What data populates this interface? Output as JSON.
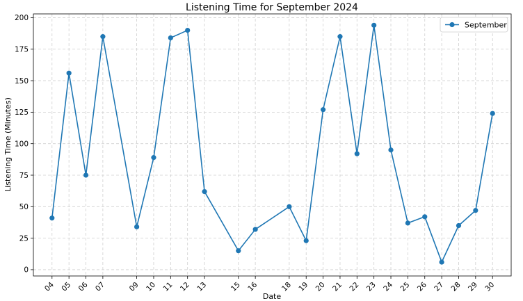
{
  "chart_data": {
    "type": "line",
    "title": "Listening Time for September 2024",
    "xlabel": "Date",
    "ylabel": "Listening Time (Minutes)",
    "x_tick_labels": [
      "04",
      "05",
      "06",
      "07",
      "09",
      "10",
      "11",
      "12",
      "13",
      "15",
      "16",
      "18",
      "19",
      "20",
      "21",
      "22",
      "23",
      "24",
      "25",
      "26",
      "27",
      "28",
      "29",
      "30"
    ],
    "x": [
      "2024-09-04",
      "2024-09-05",
      "2024-09-06",
      "2024-09-07",
      "2024-09-09",
      "2024-09-10",
      "2024-09-11",
      "2024-09-12",
      "2024-09-13",
      "2024-09-15",
      "2024-09-16",
      "2024-09-18",
      "2024-09-19",
      "2024-09-20",
      "2024-09-21",
      "2024-09-22",
      "2024-09-23",
      "2024-09-24",
      "2024-09-25",
      "2024-09-26",
      "2024-09-27",
      "2024-09-28",
      "2024-09-29",
      "2024-09-30"
    ],
    "series": [
      {
        "name": "September",
        "color": "#1f77b4",
        "values": [
          41,
          156,
          75,
          185,
          34,
          89,
          184,
          190,
          62,
          15,
          32,
          50,
          23,
          127,
          185,
          92,
          194,
          95,
          37,
          42,
          6,
          35,
          47,
          124
        ]
      }
    ],
    "ylim": [
      -5,
      203
    ],
    "y_ticks": [
      0,
      25,
      50,
      75,
      100,
      125,
      150,
      175,
      200
    ],
    "grid": true,
    "legend_position": "top-right",
    "marker": "circle"
  }
}
